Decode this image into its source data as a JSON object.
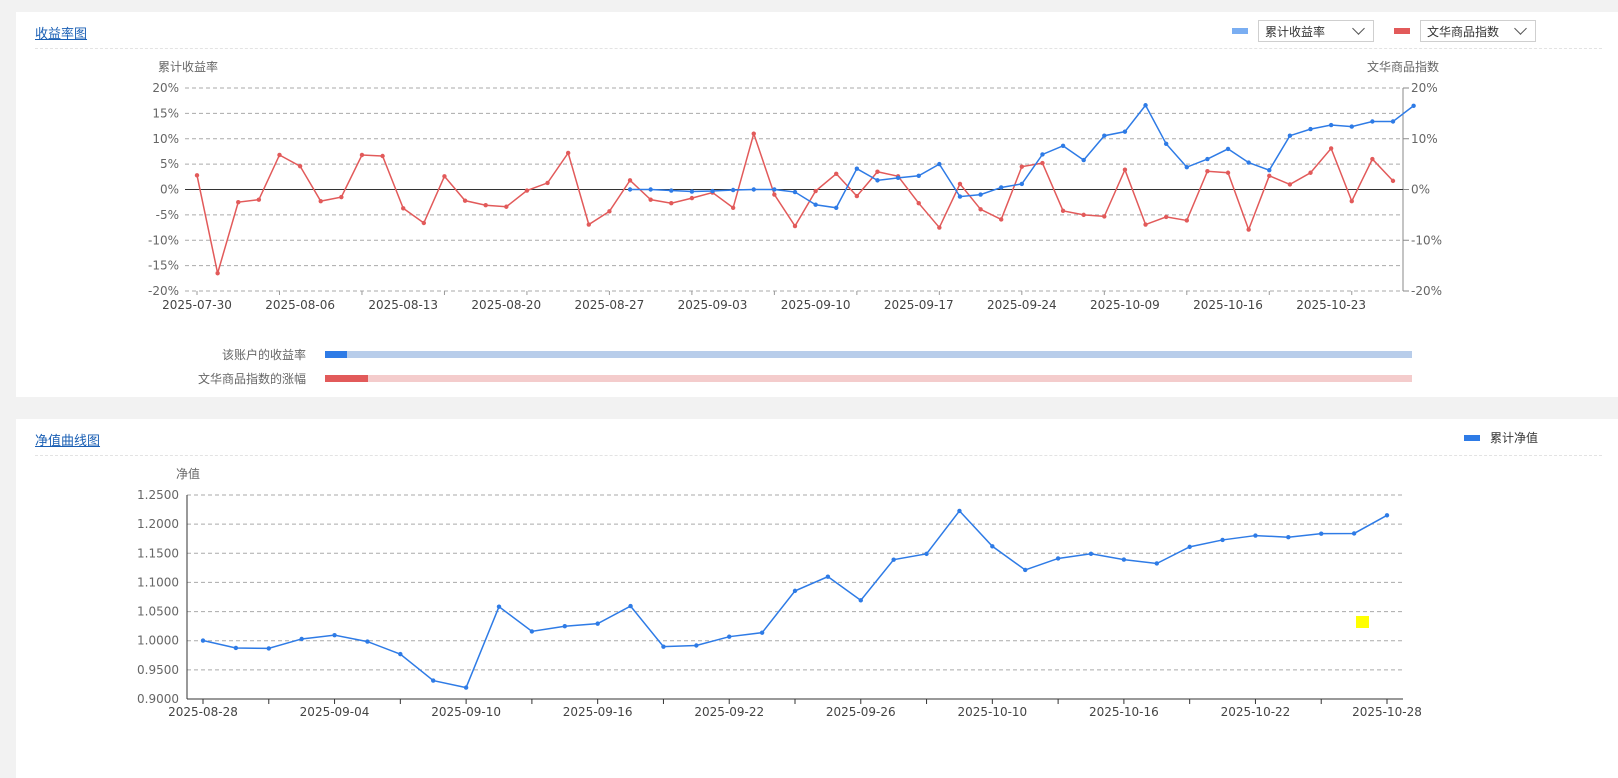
{
  "colors": {
    "blue": "#2e7be6",
    "red": "#e25a5a",
    "blue_light": "#b8cdea",
    "red_light": "#f4cccc",
    "marker": "#ffff00"
  },
  "panel1": {
    "title": "收益率图",
    "legend": [
      {
        "label": "累计收益率",
        "icon": "legend-swatch",
        "color": "#7aaef2"
      },
      {
        "label": "文华商品指数",
        "icon": "legend-swatch",
        "color": "#e25a5a"
      }
    ],
    "left_axis_title": "累计收益率",
    "right_axis_title": "文华商品指数",
    "bars": [
      {
        "label": "该账户的收益率",
        "fill_fraction": 0.02
      },
      {
        "label": "文华商品指数的涨幅",
        "fill_fraction": 0.04
      }
    ]
  },
  "panel2": {
    "title": "净值曲线图",
    "legend_label": "累计净值",
    "axis_title": "净值"
  },
  "chart_data": [
    {
      "type": "line",
      "ylim": [
        -20,
        20
      ],
      "y_ticks": [
        "20%",
        "15%",
        "10%",
        "5%",
        "0%",
        "-5%",
        "-10%",
        "-15%",
        "-20%"
      ],
      "y2lim": [
        -20,
        20
      ],
      "y2_ticks": [
        "20%",
        "10%",
        "0%",
        "-10%",
        "-20%"
      ],
      "x_tick_labels": [
        "2025-07-30",
        "2025-08-06",
        "2025-08-13",
        "2025-08-20",
        "2025-08-27",
        "2025-09-03",
        "2025-09-10",
        "2025-09-17",
        "2025-09-24",
        "2025-10-09",
        "2025-10-16",
        "2025-10-23"
      ],
      "grid": true,
      "series": [
        {
          "name": "文华商品指数",
          "axis": "right",
          "values": [
            2.8,
            -16.5,
            -2.5,
            -2.0,
            6.8,
            4.6,
            -2.3,
            -1.5,
            6.8,
            6.6,
            -3.7,
            -6.6,
            2.6,
            -2.2,
            -3.1,
            -3.4,
            -0.2,
            1.3,
            7.2,
            -6.9,
            -4.3,
            1.8,
            -2.0,
            -2.7,
            -1.7,
            -0.6,
            -3.6,
            11.0,
            -1.0,
            -7.2,
            -0.3,
            3.1,
            -1.3,
            3.5,
            2.6,
            -2.7,
            -7.5,
            1.1,
            -3.9,
            -5.9,
            4.5,
            5.2,
            -4.2,
            -5.0,
            -5.3,
            3.9,
            -6.9,
            -5.4,
            -6.1,
            3.6,
            3.3,
            -7.9,
            2.7,
            1.0,
            3.3,
            8.1,
            -2.3,
            6.0,
            1.7
          ]
        },
        {
          "name": "累计收益率",
          "axis": "left",
          "start_index": 21,
          "values": [
            0,
            0,
            -0.2,
            -0.4,
            -0.3,
            -0.1,
            0,
            0,
            -0.5,
            -3.0,
            -3.6,
            4.1,
            1.8,
            2.3,
            2.7,
            5.0,
            -1.4,
            -1.0,
            0.4,
            1.1,
            6.9,
            8.6,
            5.8,
            10.6,
            11.4,
            16.6,
            9.0,
            4.4,
            6.0,
            8.0,
            5.3,
            3.8,
            10.6,
            11.9,
            12.7,
            12.4,
            13.4,
            13.4,
            16.5
          ]
        }
      ]
    },
    {
      "type": "line",
      "ylim": [
        0.9,
        1.25
      ],
      "y_ticks": [
        "1.2500",
        "1.2000",
        "1.1500",
        "1.1000",
        "1.0500",
        "1.0000",
        "0.9500",
        "0.9000"
      ],
      "x_tick_labels": [
        "2025-08-28",
        "2025-09-04",
        "2025-09-10",
        "2025-09-16",
        "2025-09-22",
        "2025-09-26",
        "2025-10-10",
        "2025-10-16",
        "2025-10-22",
        "2025-10-28"
      ],
      "grid": true,
      "series": [
        {
          "name": "累计净值",
          "values": [
            1.0003,
            0.9876,
            0.9868,
            1.003,
            1.0095,
            0.9985,
            0.977,
            0.9316,
            0.9196,
            1.0584,
            1.016,
            1.0249,
            1.0293,
            1.0594,
            0.9898,
            0.9918,
            1.0069,
            1.0138,
            1.0855,
            1.1099,
            1.0693,
            1.1391,
            1.149,
            1.2227,
            1.162,
            1.1214,
            1.1411,
            1.1491,
            1.1392,
            1.1325,
            1.161,
            1.1729,
            1.1804,
            1.1776,
            1.1837,
            1.184,
            1.2152
          ]
        }
      ]
    }
  ]
}
